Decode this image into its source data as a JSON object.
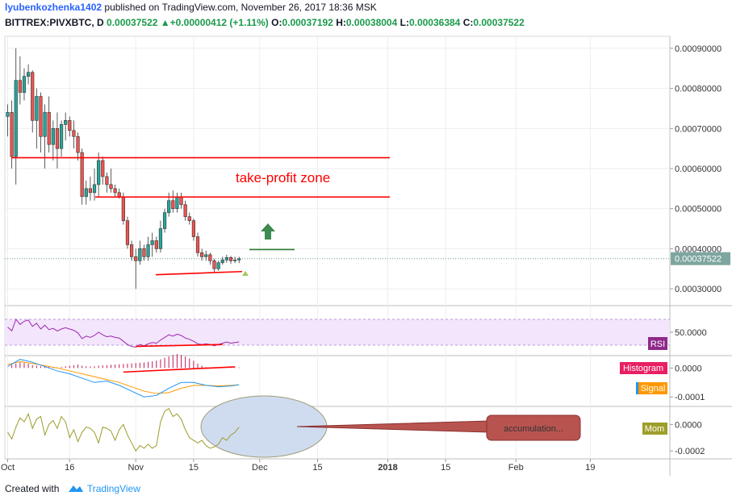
{
  "header": {
    "author": "lyubenkozhenka1402",
    "published_text": "published on TradingView.com, November 26, 2017 18:36 MSK",
    "symbol": "BITTREX:PIVXBTC, D",
    "last": "0.00037522",
    "change": "+0.00000412 (+1.11%)",
    "open_label": "O:",
    "open": "0.00037192",
    "high_label": "H:",
    "high": "0.00038004",
    "low_label": "L:",
    "low": "0.00036384",
    "close_label": "C:",
    "close": "0.00037522"
  },
  "footer": {
    "created_with": "Created with",
    "brand": "TradingView"
  },
  "colors": {
    "up": "#26a69a",
    "down": "#ef5350",
    "trend_line": "#ff0000",
    "rsi": "#9c27b0",
    "rsi_band": "#f3e5fb",
    "macd": "#2196f3",
    "signal": "#ff9800",
    "histogram": "#c2185b",
    "momentum": "#9c9c2a",
    "price_tag": "#7ea6a0",
    "callout": "#b85450",
    "ellipse_fill": "#cfdcf0"
  },
  "chart_data": [
    {
      "type": "candlestick",
      "name": "price",
      "y_ticks": [
        "0.00090000",
        "0.00080000",
        "0.00070000",
        "0.00060000",
        "0.00050000",
        "0.00040000",
        "0.00030000"
      ],
      "ylim": [
        0.00026,
        0.00093
      ],
      "last_price_label": "0.00037522",
      "last_price": 0.00037522,
      "annotations": {
        "zone_label": "take-profit zone",
        "zone_upper": 0.000627,
        "zone_lower": 0.000529,
        "target_line": 0.000398,
        "support_line_start": 0.000335,
        "support_line_end": 0.000343
      },
      "x_ticks": [
        {
          "day": 1,
          "label": "Oct"
        },
        {
          "day": 16,
          "label": "16"
        },
        {
          "day": 32,
          "label": "Nov"
        },
        {
          "day": 46,
          "label": "15"
        },
        {
          "day": 62,
          "label": "Dec"
        },
        {
          "day": 76,
          "label": "15"
        },
        {
          "day": 93,
          "label": "2018"
        },
        {
          "day": 107,
          "label": "15"
        },
        {
          "day": 124,
          "label": "Feb"
        },
        {
          "day": 142,
          "label": "19"
        }
      ],
      "candles": [
        {
          "d": 1,
          "o": 0.00073,
          "h": 0.00076,
          "l": 0.00068,
          "c": 0.00074
        },
        {
          "d": 2,
          "o": 0.00074,
          "h": 0.00077,
          "l": 0.0006,
          "c": 0.00063
        },
        {
          "d": 3,
          "o": 0.00063,
          "h": 0.0009,
          "l": 0.00056,
          "c": 0.00082
        },
        {
          "d": 4,
          "o": 0.00082,
          "h": 0.00088,
          "l": 0.00076,
          "c": 0.00079
        },
        {
          "d": 5,
          "o": 0.00079,
          "h": 0.00085,
          "l": 0.00077,
          "c": 0.00083
        },
        {
          "d": 6,
          "o": 0.00083,
          "h": 0.00086,
          "l": 0.00081,
          "c": 0.00084
        },
        {
          "d": 7,
          "o": 0.00084,
          "h": 0.000845,
          "l": 0.00069,
          "c": 0.00072
        },
        {
          "d": 8,
          "o": 0.00072,
          "h": 0.0008,
          "l": 0.00065,
          "c": 0.00078
        },
        {
          "d": 9,
          "o": 0.00078,
          "h": 0.00079,
          "l": 0.00064,
          "c": 0.00068
        },
        {
          "d": 10,
          "o": 0.00068,
          "h": 0.00076,
          "l": 0.0006,
          "c": 0.00074
        },
        {
          "d": 11,
          "o": 0.00074,
          "h": 0.00078,
          "l": 0.00064,
          "c": 0.00066
        },
        {
          "d": 12,
          "o": 0.00066,
          "h": 0.00072,
          "l": 0.00062,
          "c": 0.0007
        },
        {
          "d": 13,
          "o": 0.0007,
          "h": 0.00074,
          "l": 0.0006,
          "c": 0.00065
        },
        {
          "d": 14,
          "o": 0.00065,
          "h": 0.00072,
          "l": 0.00063,
          "c": 0.00071
        },
        {
          "d": 15,
          "o": 0.00071,
          "h": 0.00074,
          "l": 0.00067,
          "c": 0.00072
        },
        {
          "d": 16,
          "o": 0.00072,
          "h": 0.00073,
          "l": 0.00068,
          "c": 0.000695
        },
        {
          "d": 17,
          "o": 0.000695,
          "h": 0.00072,
          "l": 0.00065,
          "c": 0.00068
        },
        {
          "d": 18,
          "o": 0.00068,
          "h": 0.00069,
          "l": 0.00062,
          "c": 0.00064
        },
        {
          "d": 19,
          "o": 0.00064,
          "h": 0.00065,
          "l": 0.00051,
          "c": 0.00053
        },
        {
          "d": 20,
          "o": 0.00053,
          "h": 0.00057,
          "l": 0.00051,
          "c": 0.00055
        },
        {
          "d": 21,
          "o": 0.00055,
          "h": 0.00058,
          "l": 0.00052,
          "c": 0.00054
        },
        {
          "d": 22,
          "o": 0.00054,
          "h": 0.0006,
          "l": 0.00052,
          "c": 0.00056
        },
        {
          "d": 23,
          "o": 0.00056,
          "h": 0.00064,
          "l": 0.00053,
          "c": 0.00062
        },
        {
          "d": 24,
          "o": 0.00062,
          "h": 0.00063,
          "l": 0.00056,
          "c": 0.00058
        },
        {
          "d": 25,
          "o": 0.00058,
          "h": 0.00059,
          "l": 0.00054,
          "c": 0.00056
        },
        {
          "d": 26,
          "o": 0.00056,
          "h": 0.0006,
          "l": 0.00054,
          "c": 0.00055
        },
        {
          "d": 27,
          "o": 0.00055,
          "h": 0.00056,
          "l": 0.00053,
          "c": 0.00054
        },
        {
          "d": 28,
          "o": 0.00054,
          "h": 0.00055,
          "l": 0.000525,
          "c": 0.00053
        },
        {
          "d": 29,
          "o": 0.00053,
          "h": 0.00054,
          "l": 0.00046,
          "c": 0.00047
        },
        {
          "d": 30,
          "o": 0.00047,
          "h": 0.00048,
          "l": 0.0004,
          "c": 0.00041
        },
        {
          "d": 31,
          "o": 0.00041,
          "h": 0.00042,
          "l": 0.00037,
          "c": 0.00038
        },
        {
          "d": 32,
          "o": 0.00038,
          "h": 0.0004,
          "l": 0.0003,
          "c": 0.00037
        },
        {
          "d": 33,
          "o": 0.00037,
          "h": 0.00042,
          "l": 0.00036,
          "c": 0.0004
        },
        {
          "d": 34,
          "o": 0.0004,
          "h": 0.00041,
          "l": 0.00037,
          "c": 0.00038
        },
        {
          "d": 35,
          "o": 0.00038,
          "h": 0.00043,
          "l": 0.00037,
          "c": 0.00041
        },
        {
          "d": 36,
          "o": 0.00041,
          "h": 0.00044,
          "l": 0.00038,
          "c": 0.00042
        },
        {
          "d": 37,
          "o": 0.00042,
          "h": 0.00043,
          "l": 0.00039,
          "c": 0.0004
        },
        {
          "d": 38,
          "o": 0.0004,
          "h": 0.00047,
          "l": 0.00039,
          "c": 0.00045
        },
        {
          "d": 39,
          "o": 0.00045,
          "h": 0.0005,
          "l": 0.00044,
          "c": 0.00049
        },
        {
          "d": 40,
          "o": 0.00049,
          "h": 0.00054,
          "l": 0.00048,
          "c": 0.00052
        },
        {
          "d": 41,
          "o": 0.00052,
          "h": 0.000545,
          "l": 0.00049,
          "c": 0.0005
        },
        {
          "d": 42,
          "o": 0.0005,
          "h": 0.00054,
          "l": 0.00049,
          "c": 0.00053
        },
        {
          "d": 43,
          "o": 0.00053,
          "h": 0.00054,
          "l": 0.0005,
          "c": 0.00051
        },
        {
          "d": 44,
          "o": 0.00051,
          "h": 0.00052,
          "l": 0.00047,
          "c": 0.00048
        },
        {
          "d": 45,
          "o": 0.00048,
          "h": 0.00049,
          "l": 0.00046,
          "c": 0.00047
        },
        {
          "d": 46,
          "o": 0.00047,
          "h": 0.000475,
          "l": 0.00042,
          "c": 0.00043
        },
        {
          "d": 47,
          "o": 0.00043,
          "h": 0.00044,
          "l": 0.00038,
          "c": 0.00039
        },
        {
          "d": 48,
          "o": 0.00039,
          "h": 0.0004,
          "l": 0.00037,
          "c": 0.00038
        },
        {
          "d": 49,
          "o": 0.00038,
          "h": 0.000395,
          "l": 0.00037,
          "c": 0.000385
        },
        {
          "d": 50,
          "o": 0.000385,
          "h": 0.00039,
          "l": 0.00036,
          "c": 0.00037
        },
        {
          "d": 51,
          "o": 0.00037,
          "h": 0.000375,
          "l": 0.00034,
          "c": 0.00035
        },
        {
          "d": 52,
          "o": 0.00035,
          "h": 0.00037,
          "l": 0.000345,
          "c": 0.000365
        },
        {
          "d": 53,
          "o": 0.000365,
          "h": 0.00038,
          "l": 0.00036,
          "c": 0.000372
        },
        {
          "d": 54,
          "o": 0.000372,
          "h": 0.000385,
          "l": 0.000365,
          "c": 0.000378
        },
        {
          "d": 55,
          "o": 0.000378,
          "h": 0.000382,
          "l": 0.000362,
          "c": 0.00037
        },
        {
          "d": 56,
          "o": 0.00037,
          "h": 0.00038,
          "l": 0.000364,
          "c": 0.000372
        },
        {
          "d": 57,
          "o": 0.000372,
          "h": 0.00038,
          "l": 0.000364,
          "c": 0.000375
        }
      ]
    },
    {
      "type": "line",
      "name": "RSI",
      "legend": "RSI",
      "y_ticks": [
        "50.0000"
      ],
      "ylim": [
        15,
        90
      ],
      "band": [
        30,
        70
      ],
      "x": [
        1,
        2,
        3,
        4,
        5,
        6,
        7,
        8,
        9,
        10,
        11,
        12,
        13,
        14,
        15,
        16,
        17,
        18,
        19,
        20,
        21,
        22,
        23,
        24,
        25,
        26,
        27,
        28,
        29,
        30,
        31,
        32,
        33,
        34,
        35,
        36,
        37,
        38,
        39,
        40,
        41,
        42,
        43,
        44,
        45,
        46,
        47,
        48,
        49,
        50,
        51,
        52,
        53,
        54,
        55,
        56,
        57
      ],
      "values": [
        58,
        52,
        70,
        62,
        67,
        69,
        59,
        64,
        55,
        61,
        54,
        56,
        52,
        55,
        57,
        55,
        53,
        49,
        40,
        44,
        42,
        45,
        50,
        46,
        43,
        44,
        42,
        41,
        36,
        31,
        28,
        27,
        31,
        29,
        32,
        34,
        33,
        38,
        42,
        46,
        44,
        47,
        45,
        41,
        39,
        36,
        32,
        31,
        32,
        31,
        29,
        31,
        33,
        35,
        33,
        34,
        35
      ],
      "trend_line": [
        {
          "d": 32,
          "v": 28
        },
        {
          "d": 53,
          "v": 31
        }
      ]
    },
    {
      "type": "line",
      "name": "MACD",
      "series": [
        {
          "name": "Histogram",
          "kind": "histogram",
          "x": [
            1,
            2,
            3,
            4,
            5,
            6,
            7,
            8,
            9,
            10,
            11,
            12,
            13,
            14,
            15,
            16,
            17,
            18,
            19,
            20,
            21,
            22,
            23,
            24,
            25,
            26,
            27,
            28,
            29,
            30,
            31,
            32,
            33,
            34,
            35,
            36,
            37,
            38,
            39,
            40,
            41,
            42,
            43,
            44,
            45,
            46,
            47,
            48,
            49,
            50,
            51,
            52,
            53,
            54,
            55,
            56,
            57
          ],
          "values": [
            0.0,
            1e-05,
            1.5e-05,
            2e-05,
            1.8e-05,
            1.5e-05,
            1e-05,
            8e-06,
            6e-06,
            5e-06,
            4e-06,
            3e-06,
            2e-06,
            4e-06,
            6e-06,
            8e-06,
            1e-05,
            1.2e-05,
            8e-06,
            6e-06,
            5e-06,
            6e-06,
            8e-06,
            9e-06,
            1e-05,
            1.1e-05,
            1.2e-05,
            1.3e-05,
            1.4e-05,
            1.5e-05,
            1.6e-05,
            1.7e-05,
            1.8e-05,
            1.9e-05,
            2.1e-05,
            2.3e-05,
            2.6e-05,
            3e-05,
            3.5e-05,
            4e-05,
            4.5e-05,
            4.8e-05,
            4.5e-05,
            4e-05,
            3.3e-05,
            2.5e-05,
            1.5e-05,
            8e-06,
            3e-06,
            0.0,
            -1e-06,
            0.0,
            1e-06,
            2e-06,
            2e-06,
            2e-06,
            2e-06
          ]
        },
        {
          "name": "Signal",
          "kind": "line",
          "x": [
            1,
            4,
            7,
            10,
            13,
            16,
            19,
            22,
            25,
            28,
            31,
            34,
            37,
            40,
            43,
            46,
            49,
            52,
            55,
            57
          ],
          "values": [
            1.2e-05,
            2.2e-05,
            1.6e-05,
            8e-06,
            0.0,
            -1e-05,
            -2e-05,
            -3e-05,
            -4e-05,
            -5e-05,
            -6.5e-05,
            -8e-05,
            -8.8e-05,
            -8.5e-05,
            -7e-05,
            -6e-05,
            -6e-05,
            -6.2e-05,
            -6e-05,
            -5.8e-05
          ]
        },
        {
          "name": "MACD",
          "kind": "line",
          "x": [
            1,
            4,
            7,
            10,
            13,
            16,
            19,
            22,
            25,
            28,
            31,
            34,
            37,
            40,
            43,
            46,
            49,
            52,
            55,
            57
          ],
          "values": [
            5e-06,
            3e-05,
            2e-05,
            5e-06,
            -1e-05,
            -2e-05,
            -3.5e-05,
            -5e-05,
            -4.5e-05,
            -6e-05,
            -8e-05,
            -0.0001,
            -9.5e-05,
            -7e-05,
            -5e-05,
            -5e-05,
            -6e-05,
            -6.5e-05,
            -6.2e-05,
            -5.8e-05
          ]
        }
      ],
      "legend": [
        "Histogram",
        "Signal"
      ],
      "y_ticks": [
        "0.0000",
        "-0.0001"
      ],
      "ylim": [
        -0.00013,
        4e-05
      ],
      "trend_line": [
        {
          "d": 29,
          "v": -1.4e-05
        },
        {
          "d": 56,
          "v": 4e-06
        }
      ]
    },
    {
      "type": "line",
      "name": "Momentum",
      "legend": "Mom",
      "y_ticks": [
        "0.0000",
        "-0.0002"
      ],
      "ylim": [
        -0.00026,
        0.00013
      ],
      "x": [
        1,
        2,
        3,
        4,
        5,
        6,
        7,
        8,
        9,
        10,
        11,
        12,
        13,
        14,
        15,
        16,
        17,
        18,
        19,
        20,
        21,
        22,
        23,
        24,
        25,
        26,
        27,
        28,
        29,
        30,
        31,
        32,
        33,
        34,
        35,
        36,
        37,
        38,
        39,
        40,
        41,
        42,
        43,
        44,
        45,
        46,
        47,
        48,
        49,
        50,
        51,
        52,
        53,
        54,
        55,
        56,
        57
      ],
      "values": [
        -6e-05,
        -0.00011,
        -2e-05,
        5e-05,
        2e-05,
        8e-05,
        -3e-05,
        4e-05,
        6e-05,
        -8e-05,
        0.0,
        3e-05,
        -3e-05,
        6e-05,
        2e-05,
        -0.0001,
        -4e-05,
        -0.00013,
        -6e-05,
        -2e-05,
        -3e-05,
        -6e-05,
        -0.00014,
        -2e-05,
        -3e-05,
        -5e-05,
        -0.00012,
        -4e-05,
        0.0,
        -8e-05,
        -0.00014,
        -0.0002,
        -0.00016,
        -0.00018,
        -0.00015,
        -0.00018,
        -0.00016,
        2e-05,
        0.0001,
        0.00012,
        6e-05,
        8e-05,
        4e-05,
        -4e-05,
        -0.0001,
        -0.00012,
        -0.00014,
        -0.00012,
        -0.00016,
        -0.00018,
        -0.00017,
        -0.00015,
        -0.0001,
        -0.00012,
        -8e-05,
        -6e-05,
        -2e-05
      ],
      "callout_label": "accumulation..."
    }
  ]
}
